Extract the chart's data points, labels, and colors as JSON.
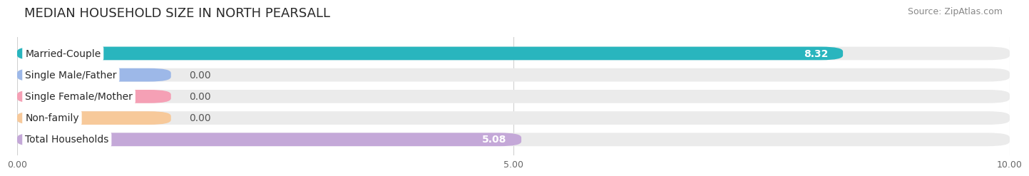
{
  "title": "MEDIAN HOUSEHOLD SIZE IN NORTH PEARSALL",
  "source": "Source: ZipAtlas.com",
  "categories": [
    "Married-Couple",
    "Single Male/Father",
    "Single Female/Mother",
    "Non-family",
    "Total Households"
  ],
  "values": [
    8.32,
    0.0,
    0.0,
    0.0,
    5.08
  ],
  "bar_colors": [
    "#29b5be",
    "#9db8e8",
    "#f5a0b5",
    "#f7c99a",
    "#c4a8d8"
  ],
  "min_bar_width": 1.55,
  "xlim": [
    0,
    10
  ],
  "xticks": [
    0.0,
    5.0,
    10.0
  ],
  "xtick_labels": [
    "0.00",
    "5.00",
    "10.00"
  ],
  "background_color": "#ffffff",
  "bar_bg_color": "#ebebeb",
  "title_fontsize": 13,
  "source_fontsize": 9,
  "bar_height": 0.62,
  "bar_label_fontsize": 10,
  "category_fontsize": 10,
  "value_label_color": "#555555",
  "value_label_inside_color": "#ffffff"
}
